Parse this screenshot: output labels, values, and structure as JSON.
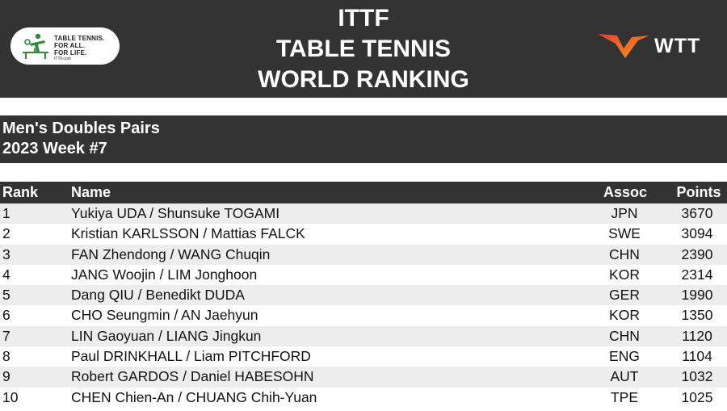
{
  "header": {
    "title_lines": [
      "ITTF",
      "TABLE TENNIS",
      "WORLD RANKING"
    ],
    "ittf_logo": {
      "tagline_lines": [
        "TABLE TENNIS.",
        "FOR ALL.",
        "FOR LIFE."
      ],
      "url": "ITTF.com",
      "color": "#2e8b3e"
    },
    "wtt_logo": {
      "text": "WTT",
      "colors": [
        "#e8412c",
        "#f39a1e"
      ]
    }
  },
  "subheader": {
    "line1": "Men's Doubles Pairs",
    "line2": "2023 Week #7"
  },
  "table": {
    "columns": {
      "rank": "Rank",
      "name": "Name",
      "assoc": "Assoc",
      "points": "Points"
    },
    "rows": [
      {
        "rank": "1",
        "name": "Yukiya UDA / Shunsuke TOGAMI",
        "assoc": "JPN",
        "points": "3670"
      },
      {
        "rank": "2",
        "name": "Kristian KARLSSON / Mattias FALCK",
        "assoc": "SWE",
        "points": "3094"
      },
      {
        "rank": "3",
        "name": "FAN Zhendong / WANG Chuqin",
        "assoc": "CHN",
        "points": "2390"
      },
      {
        "rank": "4",
        "name": "JANG Woojin / LIM Jonghoon",
        "assoc": "KOR",
        "points": "2314"
      },
      {
        "rank": "5",
        "name": "Dang QIU / Benedikt DUDA",
        "assoc": "GER",
        "points": "1990"
      },
      {
        "rank": "6",
        "name": "CHO Seungmin / AN Jaehyun",
        "assoc": "KOR",
        "points": "1350"
      },
      {
        "rank": "7",
        "name": "LIN Gaoyuan / LIANG Jingkun",
        "assoc": "CHN",
        "points": "1120"
      },
      {
        "rank": "8",
        "name": "Paul DRINKHALL / Liam PITCHFORD",
        "assoc": "ENG",
        "points": "1104"
      },
      {
        "rank": "9",
        "name": "Robert GARDOS / Daniel HABESOHN",
        "assoc": "AUT",
        "points": "1032"
      },
      {
        "rank": "10",
        "name": "CHEN Chien-An / CHUANG Chih-Yuan",
        "assoc": "TPE",
        "points": "1025"
      }
    ]
  }
}
